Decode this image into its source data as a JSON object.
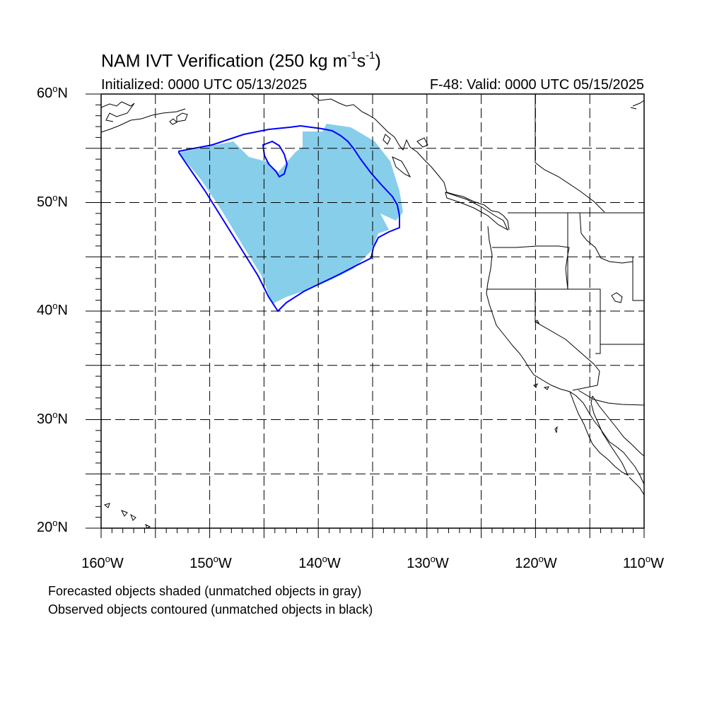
{
  "title": {
    "main": "NAM IVT Verification (250 kg m",
    "sup1": "-1",
    "mid": "s",
    "sup2": "-1",
    "close": ")"
  },
  "initialized": "Initialized: 0000 UTC 05/13/2025",
  "valid": "F-48: Valid: 0000 UTC 05/15/2025",
  "lat_labels": [
    {
      "num": "60",
      "hem": "N"
    },
    {
      "num": "50",
      "hem": "N"
    },
    {
      "num": "40",
      "hem": "N"
    },
    {
      "num": "30",
      "hem": "N"
    },
    {
      "num": "20",
      "hem": "N"
    }
  ],
  "lon_labels": [
    {
      "num": "160",
      "hem": "W"
    },
    {
      "num": "150",
      "hem": "W"
    },
    {
      "num": "140",
      "hem": "W"
    },
    {
      "num": "130",
      "hem": "W"
    },
    {
      "num": "120",
      "hem": "W"
    },
    {
      "num": "110",
      "hem": "W"
    }
  ],
  "legend": {
    "line1": "Forecasted objects shaded (unmatched objects in gray)",
    "line2": "Observed objects contoured (unmatched objects in black)"
  },
  "colors": {
    "forecast_fill": "#87ceeb",
    "observed_contour": "#0000ff",
    "grid": "#000000"
  },
  "map": {
    "lon_range": [
      -160,
      -110
    ],
    "lat_range": [
      20,
      60
    ],
    "grid_step_deg": 5
  }
}
